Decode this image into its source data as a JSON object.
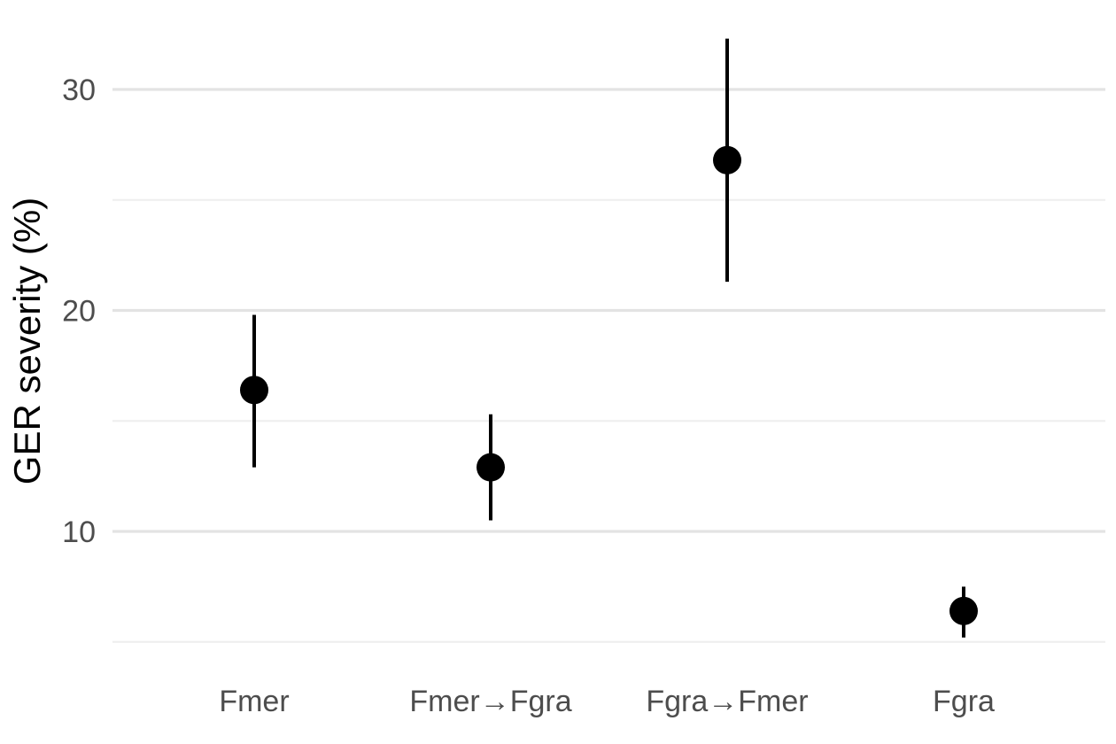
{
  "chart_data": {
    "type": "pointrange",
    "title": "",
    "xlabel": "",
    "ylabel": "GER severity (%)",
    "categories": [
      "Fmer",
      "Fmer→Fgra",
      "Fgra→Fmer",
      "Fgra"
    ],
    "series": [
      {
        "values": [
          16.4,
          12.9,
          26.8,
          6.4
        ],
        "lower": [
          12.9,
          10.5,
          21.3,
          5.2
        ],
        "upper": [
          19.8,
          15.3,
          32.3,
          7.5
        ]
      }
    ],
    "ylim": [
      5.0,
      32.3
    ],
    "yticks": [
      10,
      20,
      30
    ],
    "ytick_labels": [
      "10",
      "20",
      "30"
    ],
    "grid": true,
    "legend": "none",
    "colors": {
      "point": "#000000",
      "major_grid": "#e3e3e3",
      "minor_grid": "#eeeeee",
      "tick_text": "#4d4d4d"
    }
  }
}
